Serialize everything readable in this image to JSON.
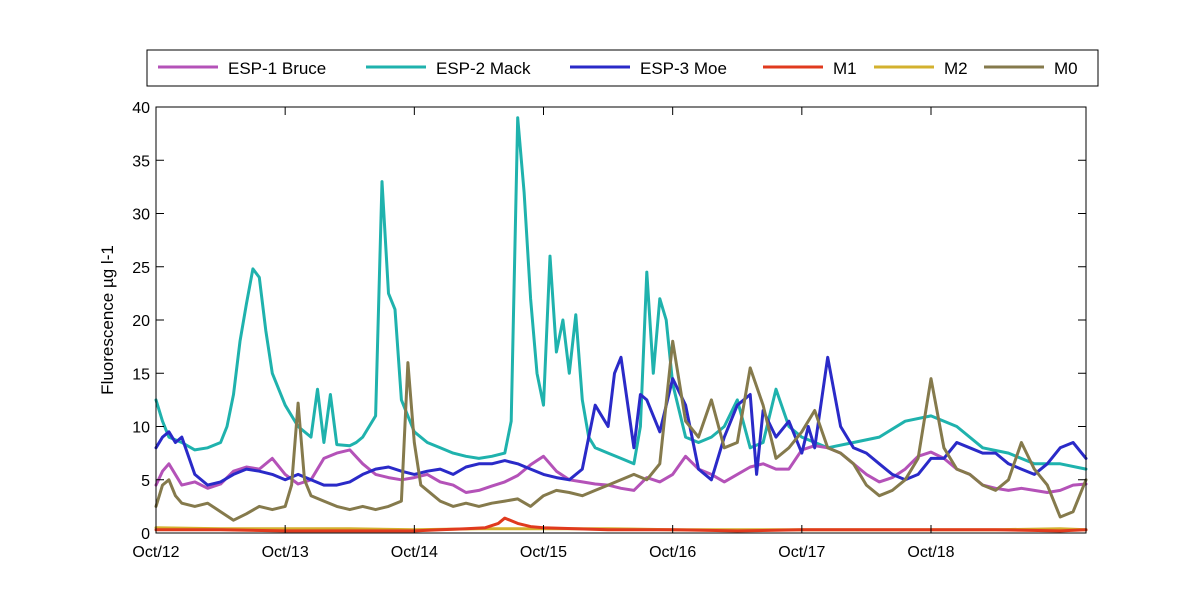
{
  "chart_data": {
    "type": "line",
    "title": "",
    "xlabel": "",
    "ylabel": "Fluorescence µg l-1",
    "xlim": [
      0,
      7.2
    ],
    "ylim": [
      0,
      40
    ],
    "x_ticks": [
      {
        "value": 0,
        "label": "Oct/12"
      },
      {
        "value": 1,
        "label": "Oct/13"
      },
      {
        "value": 2,
        "label": "Oct/14"
      },
      {
        "value": 3,
        "label": "Oct/15"
      },
      {
        "value": 4,
        "label": "Oct/16"
      },
      {
        "value": 5,
        "label": "Oct/17"
      },
      {
        "value": 6,
        "label": "Oct/18"
      }
    ],
    "y_ticks": [
      0,
      5,
      10,
      15,
      20,
      25,
      30,
      35,
      40
    ],
    "grid": false,
    "legend": {
      "placement": "top",
      "orientation": "horizontal"
    },
    "series": [
      {
        "name": "ESP-1 Bruce",
        "color": "#b452b8",
        "x": [
          0,
          0.05,
          0.1,
          0.2,
          0.3,
          0.4,
          0.5,
          0.6,
          0.7,
          0.8,
          0.9,
          1.0,
          1.1,
          1.2,
          1.3,
          1.4,
          1.5,
          1.6,
          1.7,
          1.8,
          1.9,
          2.0,
          2.1,
          2.2,
          2.3,
          2.4,
          2.5,
          2.6,
          2.7,
          2.8,
          2.9,
          3.0,
          3.1,
          3.2,
          3.3,
          3.4,
          3.5,
          3.6,
          3.7,
          3.8,
          3.9,
          4.0,
          4.1,
          4.2,
          4.3,
          4.4,
          4.5,
          4.6,
          4.7,
          4.8,
          4.9,
          5.0,
          5.1,
          5.2,
          5.3,
          5.4,
          5.5,
          5.6,
          5.7,
          5.8,
          5.9,
          6.0,
          6.1,
          6.2,
          6.3,
          6.4,
          6.5,
          6.6,
          6.7,
          6.8,
          6.9,
          7.0,
          7.1,
          7.2
        ],
        "y": [
          4.5,
          5.8,
          6.5,
          4.5,
          4.8,
          4.2,
          4.6,
          5.8,
          6.2,
          6.0,
          7.0,
          5.5,
          4.6,
          5.0,
          7.0,
          7.5,
          7.8,
          6.5,
          5.5,
          5.2,
          5.0,
          5.2,
          5.5,
          4.8,
          4.5,
          3.8,
          4.0,
          4.4,
          4.8,
          5.4,
          6.4,
          7.2,
          5.8,
          5.0,
          4.8,
          4.6,
          4.5,
          4.2,
          4.0,
          5.2,
          4.8,
          5.5,
          7.2,
          6.0,
          5.5,
          4.8,
          5.5,
          6.2,
          6.5,
          6.0,
          6.0,
          7.8,
          8.2,
          8.0,
          7.5,
          6.5,
          5.5,
          4.8,
          5.2,
          6.0,
          7.2,
          7.6,
          7.0,
          6.0,
          5.5,
          4.5,
          4.2,
          4.0,
          4.2,
          4.0,
          3.8,
          4.0,
          4.5,
          4.6
        ]
      },
      {
        "name": "ESP-2 Mack",
        "color": "#1fb2ad",
        "x": [
          0,
          0.05,
          0.1,
          0.2,
          0.3,
          0.4,
          0.5,
          0.55,
          0.6,
          0.65,
          0.7,
          0.75,
          0.8,
          0.85,
          0.9,
          1.0,
          1.1,
          1.2,
          1.25,
          1.3,
          1.35,
          1.4,
          1.5,
          1.55,
          1.6,
          1.7,
          1.75,
          1.8,
          1.85,
          1.9,
          2.0,
          2.1,
          2.2,
          2.3,
          2.4,
          2.5,
          2.6,
          2.7,
          2.75,
          2.8,
          2.85,
          2.9,
          2.95,
          3.0,
          3.05,
          3.1,
          3.15,
          3.2,
          3.25,
          3.3,
          3.35,
          3.4,
          3.5,
          3.6,
          3.7,
          3.75,
          3.8,
          3.85,
          3.9,
          3.95,
          4.0,
          4.1,
          4.2,
          4.3,
          4.4,
          4.5,
          4.6,
          4.7,
          4.8,
          4.9,
          5.0,
          5.2,
          5.4,
          5.6,
          5.8,
          6.0,
          6.2,
          6.4,
          6.6,
          6.8,
          7.0,
          7.2
        ],
        "y": [
          12.5,
          10.5,
          9.0,
          8.5,
          7.8,
          8.0,
          8.5,
          10.0,
          13.0,
          18.0,
          21.5,
          24.8,
          24.0,
          19.0,
          15.0,
          12.0,
          10.0,
          9.0,
          13.5,
          8.5,
          13.0,
          8.3,
          8.2,
          8.5,
          9.0,
          11.0,
          33.0,
          22.5,
          21.0,
          12.5,
          9.5,
          8.5,
          8.0,
          7.5,
          7.2,
          7.0,
          7.2,
          7.5,
          10.5,
          39.0,
          32.0,
          22.0,
          15.0,
          12.0,
          26.0,
          17.0,
          20.0,
          15.0,
          20.5,
          12.5,
          9.0,
          8.0,
          7.5,
          7.0,
          6.5,
          10.0,
          24.5,
          15.0,
          22.0,
          20.0,
          14.0,
          9.0,
          8.5,
          9.0,
          10.0,
          12.5,
          8.0,
          8.5,
          13.5,
          10.0,
          9.0,
          8.0,
          8.5,
          9.0,
          10.5,
          11.0,
          10.0,
          8.0,
          7.5,
          6.5,
          6.5,
          6.0
        ]
      },
      {
        "name": "ESP-3 Moe",
        "color": "#2a2ac8",
        "x": [
          0,
          0.05,
          0.1,
          0.15,
          0.2,
          0.3,
          0.4,
          0.5,
          0.6,
          0.7,
          0.8,
          0.9,
          1.0,
          1.1,
          1.2,
          1.3,
          1.4,
          1.5,
          1.6,
          1.7,
          1.8,
          1.9,
          2.0,
          2.1,
          2.2,
          2.3,
          2.4,
          2.5,
          2.6,
          2.7,
          2.8,
          2.9,
          3.0,
          3.1,
          3.2,
          3.3,
          3.4,
          3.5,
          3.55,
          3.6,
          3.7,
          3.75,
          3.8,
          3.9,
          4.0,
          4.1,
          4.2,
          4.3,
          4.4,
          4.5,
          4.6,
          4.65,
          4.7,
          4.8,
          4.9,
          5.0,
          5.05,
          5.1,
          5.2,
          5.3,
          5.4,
          5.5,
          5.6,
          5.7,
          5.8,
          5.9,
          6.0,
          6.1,
          6.2,
          6.3,
          6.4,
          6.5,
          6.6,
          6.7,
          6.8,
          6.9,
          7.0,
          7.1,
          7.2
        ],
        "y": [
          8.0,
          9.0,
          9.5,
          8.5,
          9.0,
          5.5,
          4.5,
          4.8,
          5.5,
          6.0,
          5.8,
          5.5,
          5.0,
          5.5,
          5.0,
          4.5,
          4.5,
          4.8,
          5.5,
          6.0,
          6.2,
          5.8,
          5.5,
          5.8,
          6.0,
          5.5,
          6.2,
          6.5,
          6.5,
          6.8,
          6.5,
          6.0,
          5.5,
          5.2,
          5.0,
          6.0,
          12.0,
          10.0,
          15.0,
          16.5,
          8.0,
          13.0,
          12.5,
          9.5,
          14.5,
          12.0,
          6.0,
          5.0,
          9.0,
          12.0,
          13.0,
          5.5,
          11.5,
          9.0,
          10.5,
          7.5,
          10.0,
          8.0,
          16.5,
          10.0,
          8.0,
          7.5,
          6.5,
          5.5,
          5.0,
          5.5,
          7.0,
          7.0,
          8.5,
          8.0,
          7.5,
          7.5,
          6.5,
          6.0,
          5.5,
          6.5,
          8.0,
          8.5,
          7.0
        ]
      },
      {
        "name": "M1",
        "color": "#e03a1e",
        "x": [
          0,
          0.5,
          1.0,
          1.5,
          2.0,
          2.2,
          2.4,
          2.55,
          2.65,
          2.7,
          2.8,
          2.9,
          3.0,
          3.5,
          4.0,
          4.5,
          5.0,
          5.5,
          6.0,
          6.5,
          7.0,
          7.2
        ],
        "y": [
          0.3,
          0.3,
          0.2,
          0.2,
          0.2,
          0.3,
          0.4,
          0.5,
          0.9,
          1.4,
          0.9,
          0.6,
          0.5,
          0.3,
          0.3,
          0.2,
          0.3,
          0.3,
          0.3,
          0.3,
          0.2,
          0.3
        ]
      },
      {
        "name": "M2",
        "color": "#d3b12e",
        "x": [
          0,
          0.5,
          1.0,
          1.5,
          2.0,
          2.5,
          3.0,
          3.5,
          4.0,
          4.5,
          5.0,
          5.5,
          6.0,
          6.5,
          7.0,
          7.2
        ],
        "y": [
          0.5,
          0.4,
          0.4,
          0.4,
          0.3,
          0.4,
          0.4,
          0.4,
          0.3,
          0.3,
          0.3,
          0.3,
          0.3,
          0.3,
          0.4,
          0.3
        ]
      },
      {
        "name": "M0",
        "color": "#857a4c",
        "x": [
          0,
          0.05,
          0.1,
          0.15,
          0.2,
          0.3,
          0.4,
          0.5,
          0.6,
          0.7,
          0.8,
          0.9,
          1.0,
          1.05,
          1.1,
          1.15,
          1.2,
          1.3,
          1.4,
          1.5,
          1.6,
          1.7,
          1.8,
          1.9,
          1.95,
          2.0,
          2.05,
          2.1,
          2.2,
          2.3,
          2.4,
          2.5,
          2.6,
          2.7,
          2.8,
          2.9,
          3.0,
          3.1,
          3.2,
          3.3,
          3.4,
          3.5,
          3.6,
          3.7,
          3.8,
          3.9,
          4.0,
          4.1,
          4.2,
          4.3,
          4.4,
          4.5,
          4.6,
          4.7,
          4.8,
          4.9,
          5.0,
          5.1,
          5.2,
          5.3,
          5.4,
          5.5,
          5.6,
          5.7,
          5.8,
          5.9,
          6.0,
          6.1,
          6.2,
          6.3,
          6.4,
          6.5,
          6.6,
          6.7,
          6.8,
          6.9,
          7.0,
          7.1,
          7.2
        ],
        "y": [
          2.5,
          4.5,
          5.0,
          3.5,
          2.8,
          2.5,
          2.8,
          2.0,
          1.2,
          1.8,
          2.5,
          2.2,
          2.5,
          4.5,
          12.2,
          5.0,
          3.5,
          3.0,
          2.5,
          2.2,
          2.5,
          2.2,
          2.5,
          3.0,
          16.0,
          8.5,
          4.5,
          4.0,
          3.0,
          2.5,
          2.8,
          2.5,
          2.8,
          3.0,
          3.2,
          2.5,
          3.5,
          4.0,
          3.8,
          3.5,
          4.0,
          4.5,
          5.0,
          5.5,
          5.0,
          6.5,
          18.0,
          10.5,
          9.0,
          12.5,
          8.0,
          8.5,
          15.5,
          12.0,
          7.0,
          8.0,
          9.5,
          11.5,
          8.0,
          7.5,
          6.5,
          4.5,
          3.5,
          4.0,
          5.0,
          7.0,
          14.5,
          8.0,
          6.0,
          5.5,
          4.5,
          4.0,
          5.0,
          8.5,
          6.0,
          4.5,
          1.5,
          2.0,
          5.0
        ]
      }
    ]
  }
}
